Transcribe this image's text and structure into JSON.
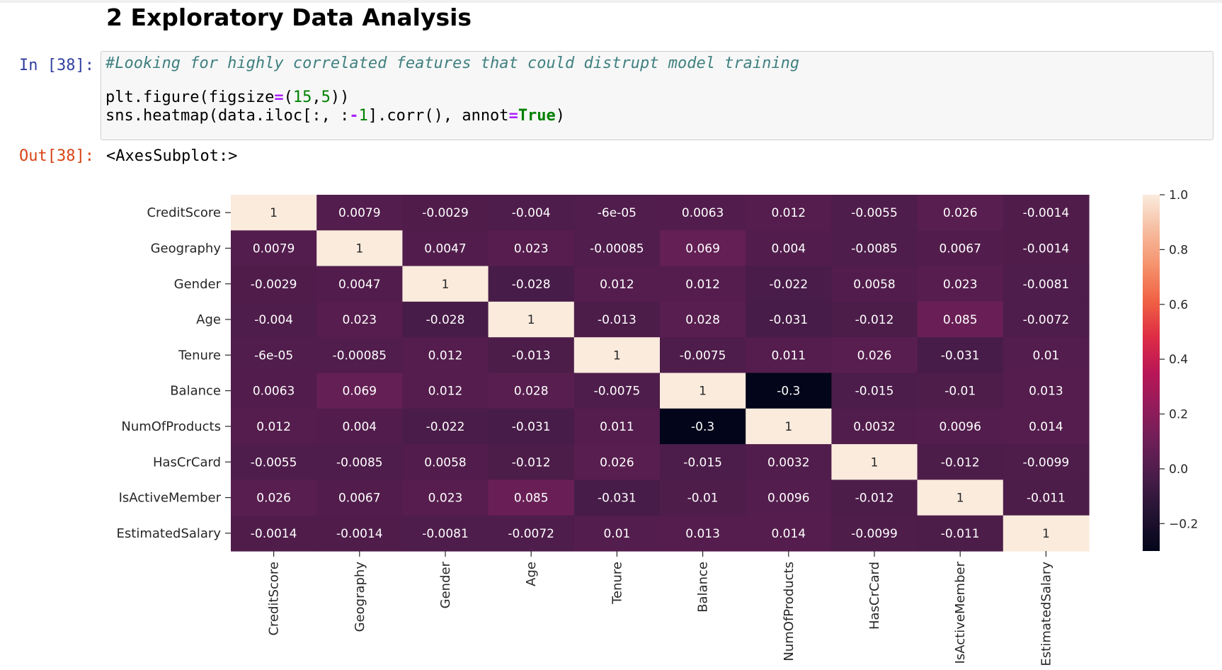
{
  "notebook": {
    "section_title": "2  Exploratory Data Analysis",
    "cell": {
      "in_prompt": "In [38]:",
      "out_prompt": "Out[38]:",
      "code": {
        "comment": "#Looking for highly correlated features that could distrupt model training",
        "line2": {
          "a": "plt.figure(figsize",
          "op": "=",
          "b": "(",
          "n1": "15",
          "c": ",",
          "n2": "5",
          "d": "))"
        },
        "line3": {
          "a": "sns.heatmap(data.iloc[:, :",
          "op1": "-",
          "n1": "1",
          "b": "].corr(), annot",
          "op2": "=",
          "kw": "True",
          "c": ")"
        }
      },
      "output": "<AxesSubplot:>"
    }
  },
  "chart_data": {
    "type": "heatmap",
    "rows": [
      "CreditScore",
      "Geography",
      "Gender",
      "Age",
      "Tenure",
      "Balance",
      "NumOfProducts",
      "HasCrCard",
      "IsActiveMember",
      "EstimatedSalary"
    ],
    "columns": [
      "CreditScore",
      "Geography",
      "Gender",
      "Age",
      "Tenure",
      "Balance",
      "NumOfProducts",
      "HasCrCard",
      "IsActiveMember",
      "EstimatedSalary"
    ],
    "values": [
      [
        1,
        0.0079,
        -0.0029,
        -0.004,
        -6e-05,
        0.0063,
        0.012,
        -0.0055,
        0.026,
        -0.0014
      ],
      [
        0.0079,
        1,
        0.0047,
        0.023,
        -0.00085,
        0.069,
        0.004,
        -0.0085,
        0.0067,
        -0.0014
      ],
      [
        -0.0029,
        0.0047,
        1,
        -0.028,
        0.012,
        0.012,
        -0.022,
        0.0058,
        0.023,
        -0.0081
      ],
      [
        -0.004,
        0.023,
        -0.028,
        1,
        -0.013,
        0.028,
        -0.031,
        -0.012,
        0.085,
        -0.0072
      ],
      [
        -6e-05,
        -0.00085,
        0.012,
        -0.013,
        1,
        -0.0075,
        0.011,
        0.026,
        -0.031,
        0.01
      ],
      [
        0.0063,
        0.069,
        0.012,
        0.028,
        -0.0075,
        1,
        -0.3,
        -0.015,
        -0.01,
        0.013
      ],
      [
        0.012,
        0.004,
        -0.022,
        -0.031,
        0.011,
        -0.3,
        1,
        0.0032,
        0.0096,
        0.014
      ],
      [
        -0.0055,
        -0.0085,
        0.0058,
        -0.012,
        0.026,
        -0.015,
        0.0032,
        1,
        -0.012,
        -0.0099
      ],
      [
        0.026,
        0.0067,
        0.023,
        0.085,
        -0.031,
        -0.01,
        0.0096,
        -0.012,
        1,
        -0.011
      ],
      [
        -0.0014,
        -0.0014,
        -0.0081,
        -0.0072,
        0.01,
        0.013,
        0.014,
        -0.0099,
        -0.011,
        1
      ]
    ],
    "annotations": [
      [
        "1",
        "0.0079",
        "-0.0029",
        "-0.004",
        "-6e-05",
        "0.0063",
        "0.012",
        "-0.0055",
        "0.026",
        "-0.0014"
      ],
      [
        "0.0079",
        "1",
        "0.0047",
        "0.023",
        "-0.00085",
        "0.069",
        "0.004",
        "-0.0085",
        "0.0067",
        "-0.0014"
      ],
      [
        "-0.0029",
        "0.0047",
        "1",
        "-0.028",
        "0.012",
        "0.012",
        "-0.022",
        "0.0058",
        "0.023",
        "-0.0081"
      ],
      [
        "-0.004",
        "0.023",
        "-0.028",
        "1",
        "-0.013",
        "0.028",
        "-0.031",
        "-0.012",
        "0.085",
        "-0.0072"
      ],
      [
        "-6e-05",
        "-0.00085",
        "0.012",
        "-0.013",
        "1",
        "-0.0075",
        "0.011",
        "0.026",
        "-0.031",
        "0.01"
      ],
      [
        "0.0063",
        "0.069",
        "0.012",
        "0.028",
        "-0.0075",
        "1",
        "-0.3",
        "-0.015",
        "-0.01",
        "0.013"
      ],
      [
        "0.012",
        "0.004",
        "-0.022",
        "-0.031",
        "0.011",
        "-0.3",
        "1",
        "0.0032",
        "0.0096",
        "0.014"
      ],
      [
        "-0.0055",
        "-0.0085",
        "0.0058",
        "-0.012",
        "0.026",
        "-0.015",
        "0.0032",
        "1",
        "-0.012",
        "-0.0099"
      ],
      [
        "0.026",
        "0.0067",
        "0.023",
        "0.085",
        "-0.031",
        "-0.01",
        "0.0096",
        "-0.012",
        "1",
        "-0.011"
      ],
      [
        "-0.0014",
        "-0.0014",
        "-0.0081",
        "-0.0072",
        "0.01",
        "0.013",
        "0.014",
        "-0.0099",
        "-0.011",
        "1"
      ]
    ],
    "colormap": "rocket",
    "colorbar": {
      "range": [
        -0.3,
        1.0
      ],
      "ticks": [
        1.0,
        0.8,
        0.6,
        0.4,
        0.2,
        0.0,
        -0.2
      ],
      "tick_labels": [
        "1.0",
        "0.8",
        "0.6",
        "0.4",
        "0.2",
        "0.0",
        "−0.2"
      ]
    },
    "title": "",
    "xlabel": "",
    "ylabel": ""
  }
}
